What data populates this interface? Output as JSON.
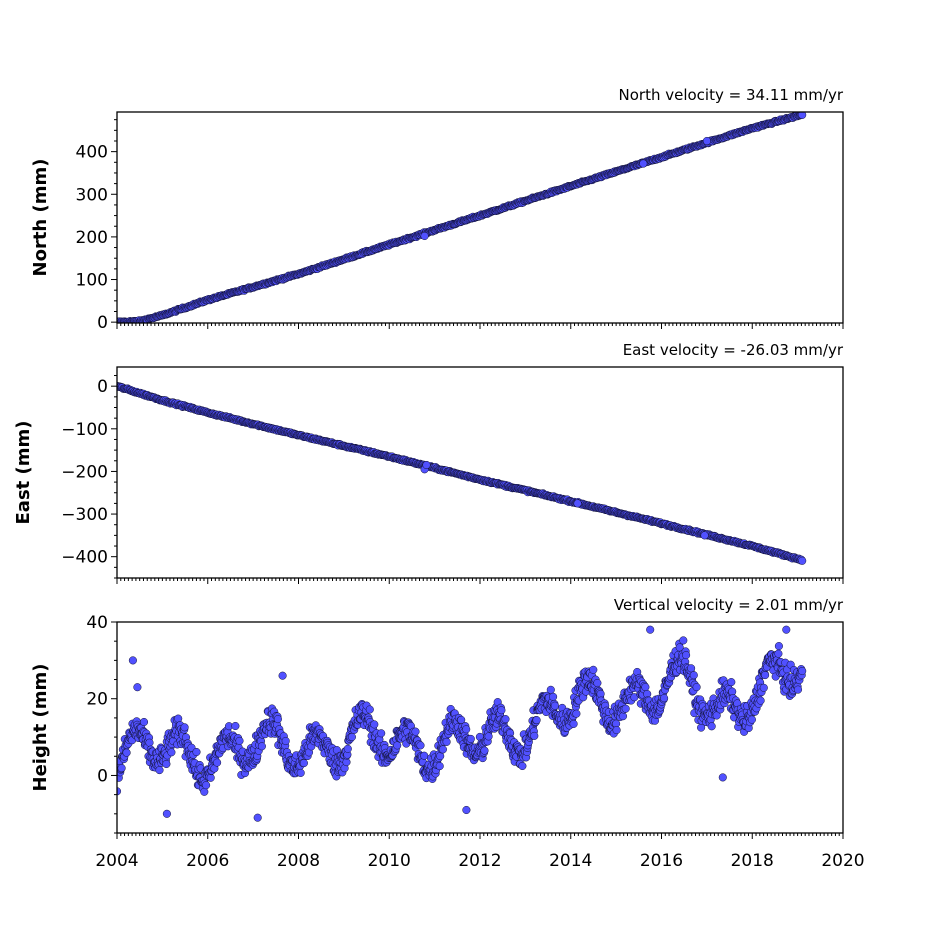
{
  "chart_data": {
    "type": "scatter",
    "x_axis": {
      "ticks": [
        "2004",
        "2006",
        "2008",
        "2010",
        "2012",
        "2014",
        "2016",
        "2018",
        "2020"
      ],
      "xlim": [
        2004,
        2020
      ]
    },
    "marker_color": "#5151ff",
    "marker_edge_color": "#111133",
    "panels": [
      {
        "key": "north",
        "title": "North velocity = 34.11 mm/yr",
        "ylabel": "North (mm)",
        "ylim": [
          -2,
          493
        ],
        "yticks": [
          {
            "v": 0,
            "label": "0"
          },
          {
            "v": 100,
            "label": "100"
          },
          {
            "v": 200,
            "label": "200"
          },
          {
            "v": 300,
            "label": "300"
          },
          {
            "v": 400,
            "label": "400"
          }
        ],
        "velocity": 34.11,
        "trend": [
          [
            2004.0,
            0
          ],
          [
            2004.5,
            2
          ],
          [
            2005.0,
            16
          ],
          [
            2006.0,
            52
          ],
          [
            2008.0,
            113
          ],
          [
            2010.0,
            182
          ],
          [
            2012.0,
            250
          ],
          [
            2014.0,
            319
          ],
          [
            2016.0,
            387
          ],
          [
            2018.0,
            455
          ],
          [
            2019.1,
            487
          ]
        ],
        "noise": 1.5,
        "outliers": [
          [
            2010.78,
            202
          ],
          [
            2017.0,
            425
          ],
          [
            2015.6,
            372
          ]
        ]
      },
      {
        "key": "east",
        "title": "East velocity = -26.03 mm/yr",
        "ylabel": "East (mm)",
        "ylim": [
          -450,
          45
        ],
        "yticks": [
          {
            "v": 0,
            "label": "0"
          },
          {
            "v": -100,
            "label": "−100"
          },
          {
            "v": -200,
            "label": "−200"
          },
          {
            "v": -300,
            "label": "−300"
          },
          {
            "v": -400,
            "label": "−400"
          }
        ],
        "velocity": -26.03,
        "trend": [
          [
            2004.0,
            0
          ],
          [
            2005.0,
            -33
          ],
          [
            2006.0,
            -62
          ],
          [
            2008.0,
            -115
          ],
          [
            2010.0,
            -165
          ],
          [
            2012.0,
            -219
          ],
          [
            2014.0,
            -270
          ],
          [
            2016.0,
            -322
          ],
          [
            2018.0,
            -375
          ],
          [
            2019.1,
            -408
          ]
        ],
        "noise": 1.5,
        "outliers": [
          [
            2010.78,
            -195
          ],
          [
            2010.82,
            -185
          ],
          [
            2014.15,
            -275
          ],
          [
            2016.95,
            -350
          ]
        ]
      },
      {
        "key": "height",
        "title": "Vertical velocity = 2.01 mm/yr",
        "ylabel": "Height (mm)",
        "ylim": [
          -15,
          40
        ],
        "yticks": [
          {
            "v": 0,
            "label": "0"
          },
          {
            "v": 20,
            "label": "20"
          },
          {
            "v": 40,
            "label": "40"
          }
        ],
        "velocity": 2.01,
        "trend": [
          [
            2004.0,
            6
          ],
          [
            2006.0,
            6
          ],
          [
            2008.0,
            8
          ],
          [
            2010.0,
            9
          ],
          [
            2012.0,
            8
          ],
          [
            2013.5,
            16
          ],
          [
            2015.0,
            20
          ],
          [
            2016.5,
            24
          ],
          [
            2017.2,
            17
          ],
          [
            2018.0,
            22
          ],
          [
            2019.1,
            27
          ]
        ],
        "seasonal_amplitude": 5,
        "noise": 2.5,
        "outliers": [
          [
            2004.35,
            30
          ],
          [
            2004.45,
            23
          ],
          [
            2007.65,
            26
          ],
          [
            2007.1,
            -11
          ],
          [
            2011.7,
            -9
          ],
          [
            2005.1,
            -10
          ],
          [
            2017.35,
            -0.5
          ],
          [
            2018.75,
            38
          ],
          [
            2015.75,
            38
          ]
        ]
      }
    ]
  }
}
